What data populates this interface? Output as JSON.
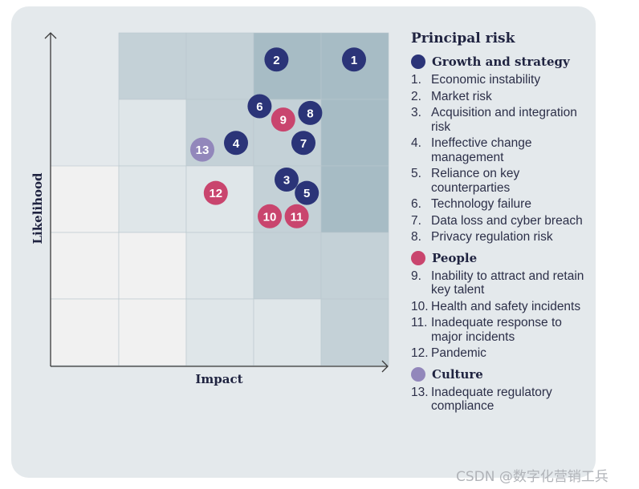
{
  "colors": {
    "panel": "#e4e9ec",
    "growth": "#2b3478",
    "people": "#c9456e",
    "culture": "#9287bb",
    "shade_0": "#f1f1f1",
    "shade_1": "#dfe6e9",
    "shade_2": "#c4d1d7",
    "shade_3": "#a7bcc5",
    "axis": "#3a3a3a"
  },
  "chart_data": {
    "type": "scatter",
    "title": "",
    "xlabel": "Impact",
    "ylabel": "Likelihood",
    "xlim": [
      0,
      5
    ],
    "ylim": [
      0,
      5
    ],
    "grid": "5x5 heat map",
    "heat_levels_by_row_top_to_bottom": [
      [
        null,
        2,
        2,
        3,
        3
      ],
      [
        null,
        1,
        2,
        2,
        3
      ],
      [
        0,
        1,
        1,
        2,
        3
      ],
      [
        0,
        0,
        1,
        2,
        2
      ],
      [
        0,
        0,
        1,
        1,
        2
      ]
    ],
    "series": [
      {
        "name": "Growth and strategy",
        "color_key": "growth",
        "points": [
          {
            "label": "1",
            "x": 4.5,
            "y": 4.6
          },
          {
            "label": "2",
            "x": 3.35,
            "y": 4.6
          },
          {
            "label": "3",
            "x": 3.5,
            "y": 2.8
          },
          {
            "label": "4",
            "x": 2.75,
            "y": 3.35
          },
          {
            "label": "5",
            "x": 3.8,
            "y": 2.6
          },
          {
            "label": "6",
            "x": 3.1,
            "y": 3.9
          },
          {
            "label": "7",
            "x": 3.75,
            "y": 3.35
          },
          {
            "label": "8",
            "x": 3.85,
            "y": 3.8
          }
        ]
      },
      {
        "name": "People",
        "color_key": "people",
        "points": [
          {
            "label": "9",
            "x": 3.45,
            "y": 3.7
          },
          {
            "label": "10",
            "x": 3.25,
            "y": 2.25
          },
          {
            "label": "11",
            "x": 3.65,
            "y": 2.25
          },
          {
            "label": "12",
            "x": 2.45,
            "y": 2.6
          }
        ]
      },
      {
        "name": "Culture",
        "color_key": "culture",
        "points": [
          {
            "label": "13",
            "x": 2.25,
            "y": 3.25
          }
        ]
      }
    ]
  },
  "legend": {
    "title": "Principal risk",
    "groups": [
      {
        "name": "Growth and strategy",
        "color_key": "growth",
        "items": [
          {
            "num": "1.",
            "text": "Economic instability"
          },
          {
            "num": "2.",
            "text": "Market risk"
          },
          {
            "num": "3.",
            "text": "Acquisition and integration risk"
          },
          {
            "num": "4.",
            "text": "Ineffective change management"
          },
          {
            "num": "5.",
            "text": "Reliance on key counterparties"
          },
          {
            "num": "6.",
            "text": "Technology failure"
          },
          {
            "num": "7.",
            "text": "Data loss and cyber breach"
          },
          {
            "num": "8.",
            "text": "Privacy regulation risk"
          }
        ]
      },
      {
        "name": "People",
        "color_key": "people",
        "items": [
          {
            "num": "9.",
            "text": "Inability to attract and retain key talent"
          },
          {
            "num": "10.",
            "text": "Health and safety incidents"
          },
          {
            "num": "11.",
            "text": "Inadequate response to major incidents"
          },
          {
            "num": "12.",
            "text": "Pandemic"
          }
        ]
      },
      {
        "name": "Culture",
        "color_key": "culture",
        "items": [
          {
            "num": "13.",
            "text": "Inadequate regulatory compliance"
          }
        ]
      }
    ]
  },
  "watermark": "CSDN @数字化营销工兵"
}
